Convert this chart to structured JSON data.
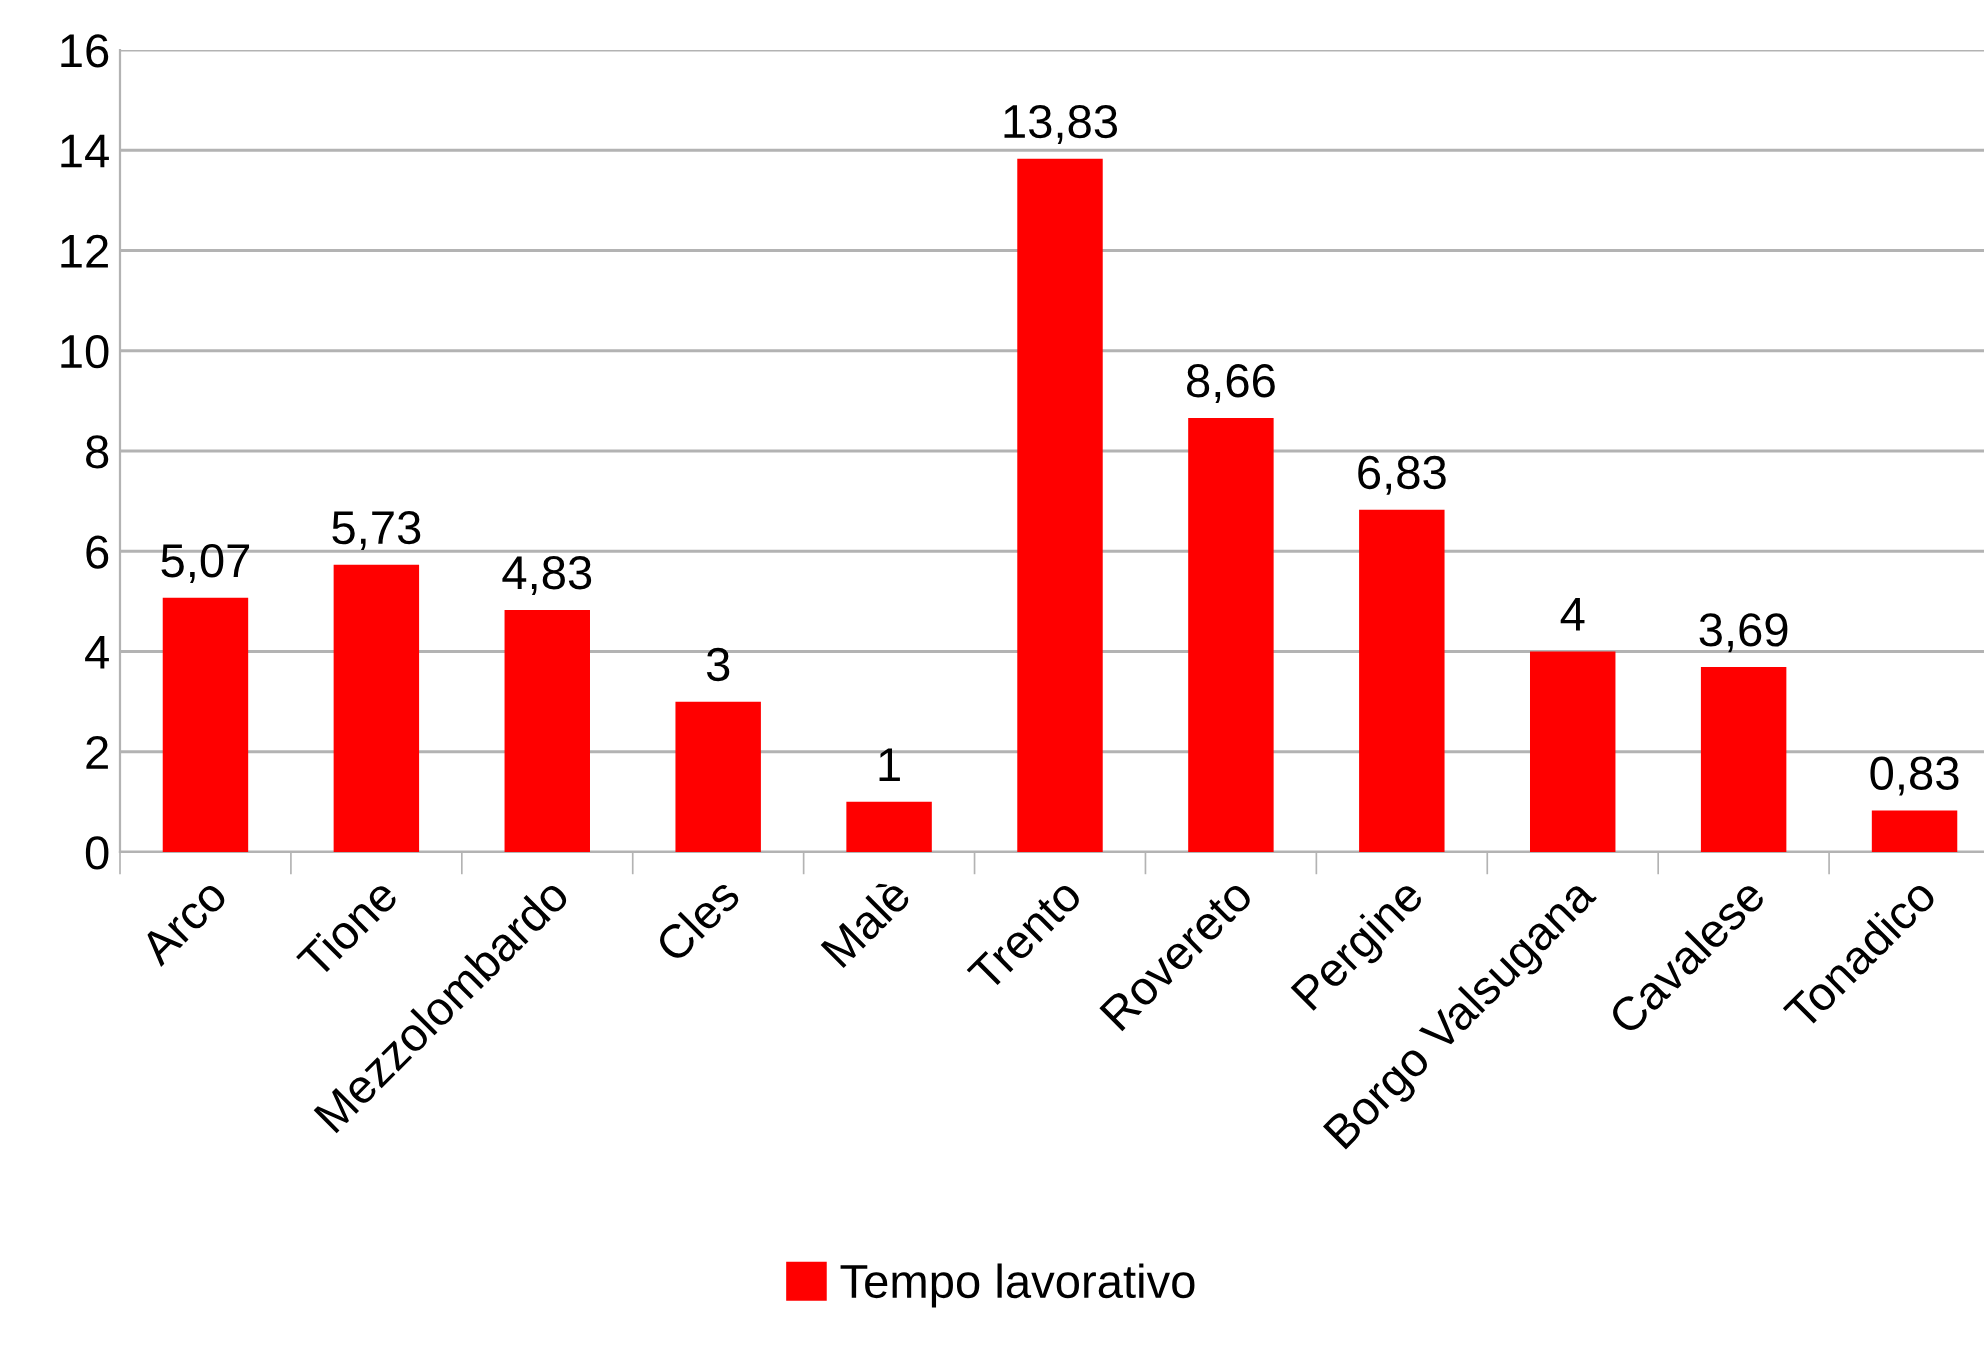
{
  "chart_data": {
    "type": "bar",
    "categories": [
      "Arco",
      "Tione",
      "Mezzolombardo",
      "Cles",
      "Malè",
      "Trento",
      "Rovereto",
      "Pergine",
      "Borgo Valsugana",
      "Cavalese",
      "Tonadico"
    ],
    "series": [
      {
        "name": "Tempo lavorativo",
        "color": "#ff0000",
        "values": [
          5.07,
          5.73,
          4.83,
          3,
          1,
          13.83,
          8.66,
          6.83,
          4,
          3.69,
          0.83
        ],
        "value_labels": [
          "5,07",
          "5,73",
          "4,83",
          "3",
          "1",
          "13,83",
          "8,66",
          "6,83",
          "4",
          "3,69",
          "0,83"
        ]
      }
    ],
    "ylim": [
      0,
      16
    ],
    "yticks": [
      0,
      2,
      4,
      6,
      8,
      10,
      12,
      14,
      16
    ],
    "grid": "y",
    "legend": "bottom"
  }
}
